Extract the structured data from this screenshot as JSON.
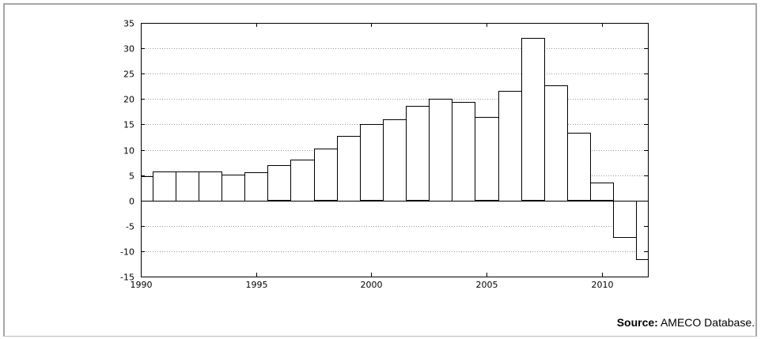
{
  "source": {
    "prefix": "Source:",
    "text": " AMECO Database."
  },
  "chart_data": {
    "type": "bar",
    "title": "",
    "xlabel": "",
    "ylabel": "",
    "xlim": [
      1990,
      2012
    ],
    "ylim": [
      -15,
      35
    ],
    "grid": true,
    "x_ticks": [
      "1990",
      "1995",
      "2000",
      "2005",
      "2010"
    ],
    "y_ticks": [
      "35",
      "30",
      "25",
      "20",
      "15",
      "10",
      "5",
      "0",
      "-5",
      "-10",
      "-15"
    ],
    "bars": [
      {
        "year": 1990,
        "value": 4.8
      },
      {
        "year": 1991,
        "value": 5.7
      },
      {
        "year": 1992,
        "value": 5.7
      },
      {
        "year": 1993,
        "value": 5.7
      },
      {
        "year": 1994,
        "value": 5.1
      },
      {
        "year": 1995,
        "value": 5.6
      },
      {
        "year": 1996,
        "value": 6.9
      },
      {
        "year": 1997,
        "value": 8.1
      },
      {
        "year": 1998,
        "value": 10.2
      },
      {
        "year": 1999,
        "value": 12.7
      },
      {
        "year": 2000,
        "value": 15.0
      },
      {
        "year": 2001,
        "value": 16.0
      },
      {
        "year": 2002,
        "value": 18.6
      },
      {
        "year": 2003,
        "value": 20.1
      },
      {
        "year": 2004,
        "value": 19.5
      },
      {
        "year": 2005,
        "value": 16.4
      },
      {
        "year": 2006,
        "value": 21.6
      },
      {
        "year": 2007,
        "value": 32.0
      },
      {
        "year": 2008,
        "value": 22.7
      },
      {
        "year": 2009,
        "value": 13.3
      },
      {
        "year": 2010,
        "value": 3.5
      },
      {
        "year": 2011,
        "value": -7.2
      },
      {
        "year": 2012,
        "value": -11.6
      }
    ]
  }
}
